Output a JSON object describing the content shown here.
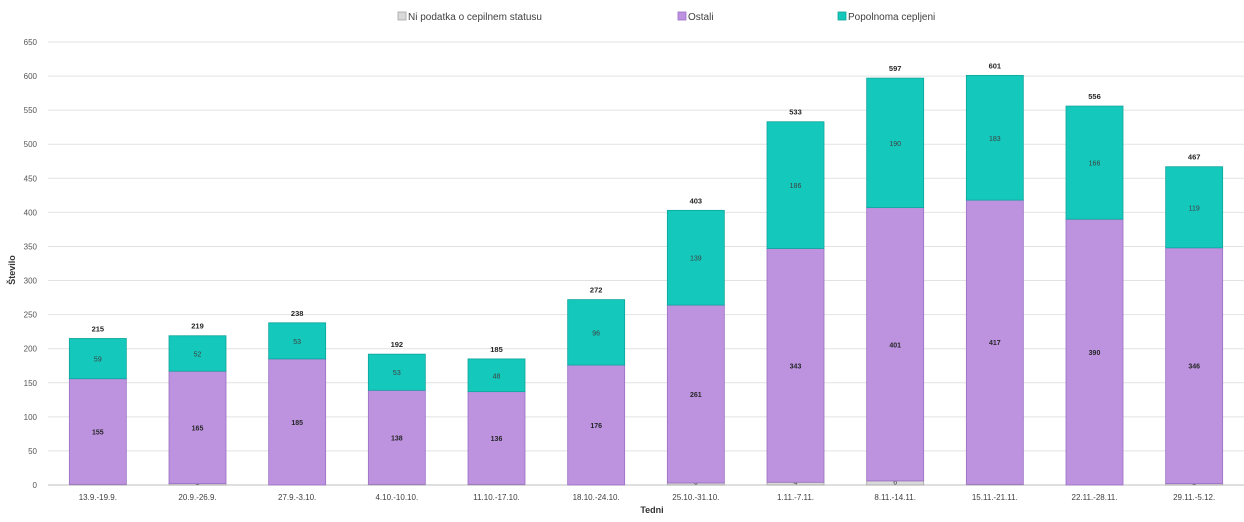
{
  "chart_data": {
    "type": "bar",
    "stacked": true,
    "categories": [
      "13.9.-19.9.",
      "20.9.-26.9.",
      "27.9.-3.10.",
      "4.10.-10.10.",
      "11.10.-17.10.",
      "18.10.-24.10.",
      "25.10.-31.10.",
      "1.11.-7.11.",
      "8.11.-14.11.",
      "15.11.-21.11.",
      "22.11.-28.11.",
      "29.11.-5.12."
    ],
    "series": [
      {
        "name": "Ni podatka o cepilnem statusu",
        "color": "#d9d9d9",
        "values": [
          1,
          2,
          0,
          1,
          1,
          0,
          3,
          4,
          6,
          1,
          0,
          2
        ]
      },
      {
        "name": "Ostali",
        "color": "#bd93e0",
        "values": [
          155,
          165,
          185,
          138,
          136,
          176,
          261,
          343,
          401,
          417,
          390,
          346
        ]
      },
      {
        "name": "Popolnoma cepljeni",
        "color": "#14c8bc",
        "values": [
          59,
          52,
          53,
          53,
          48,
          96,
          139,
          186,
          190,
          183,
          166,
          119
        ]
      }
    ],
    "totals": [
      215,
      219,
      238,
      192,
      185,
      272,
      403,
      533,
      597,
      601,
      556,
      467
    ],
    "xlabel": "Tedni",
    "ylabel": "Število",
    "ylim": [
      0,
      650
    ],
    "yticks": [
      0,
      50,
      100,
      150,
      200,
      250,
      300,
      350,
      400,
      450,
      500,
      550,
      600,
      650
    ],
    "grid": true,
    "legend_position": "top"
  }
}
